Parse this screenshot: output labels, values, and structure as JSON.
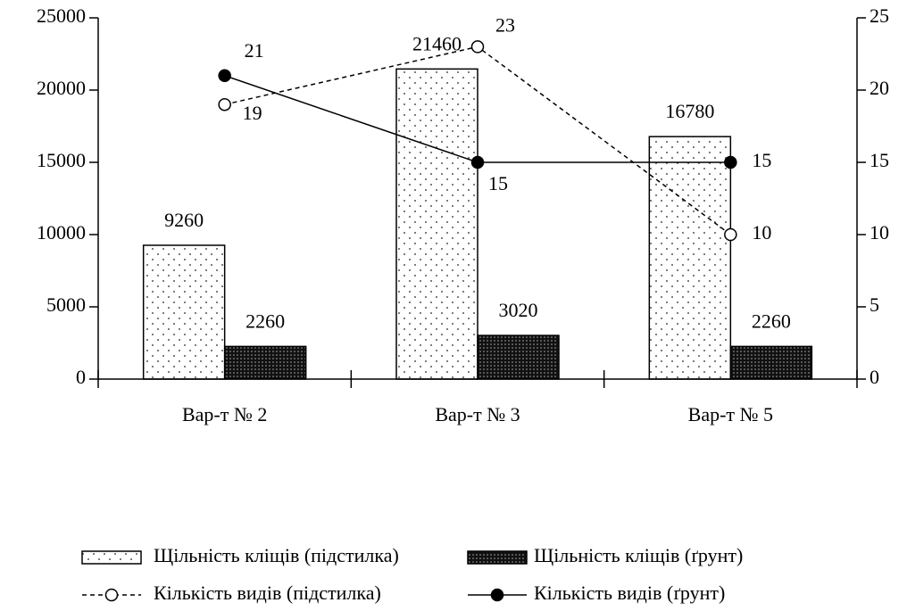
{
  "chart_data": {
    "type": "bar",
    "categories": [
      "Вар-т № 2",
      "Вар-т № 3",
      "Вар-т № 5"
    ],
    "series": [
      {
        "name": "Щільність кліщів (підстилка)",
        "type": "bar",
        "pattern": "dots-light",
        "color": "#000000",
        "values": [
          9260,
          21460,
          16780
        ]
      },
      {
        "name": "Щільність кліщів (ґрунт)",
        "type": "bar",
        "pattern": "dots-dark",
        "color": "#000000",
        "values": [
          2260,
          3020,
          2260
        ]
      },
      {
        "name": "Кількість видів (підстилка)",
        "type": "line",
        "axis": "y2",
        "dashed": true,
        "marker": "open",
        "color": "#000000",
        "values": [
          19,
          23,
          10
        ]
      },
      {
        "name": "Кількість видів (ґрунт)",
        "type": "line",
        "axis": "y2",
        "dashed": false,
        "marker": "filled",
        "color": "#000000",
        "values": [
          21,
          15,
          15
        ]
      }
    ],
    "ylim": [
      0,
      25000
    ],
    "yticks": [
      0,
      5000,
      10000,
      15000,
      20000,
      25000
    ],
    "y2lim": [
      0,
      25
    ],
    "y2ticks": [
      0,
      5,
      10,
      15,
      20,
      25
    ],
    "grid": false,
    "legend": "bottom"
  }
}
